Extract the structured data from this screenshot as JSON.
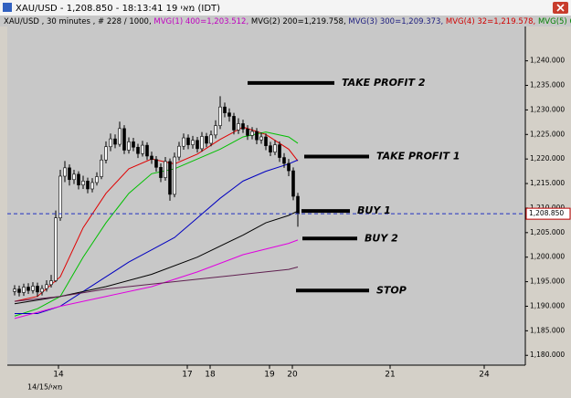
{
  "window_title": "XAU/USD - 1,208.850 - 18:13:41  19 מאי (IDT)",
  "chart_data": {
    "type": "candlestick",
    "header": [
      {
        "text": "XAU/USD , 30 minutes , # 228 / 1000, ",
        "color": "#000000"
      },
      {
        "text": "MVG(1) 400=1,203.512, ",
        "color": "#c000c0"
      },
      {
        "text": "MVG(2) 200=1,219.758, ",
        "color": "#000000"
      },
      {
        "text": "MVG(3) 300=1,209.373, ",
        "color": "#202080"
      },
      {
        "text": "MVG(4) 32=1,219.578, ",
        "color": "#d00000"
      },
      {
        "text": "MVG(5) 64=1,223.16",
        "color": "#008000"
      }
    ],
    "date_note": "14/15/מאי",
    "x": [
      0,
      1,
      2,
      3,
      4,
      5,
      6,
      7,
      8,
      9,
      10,
      11,
      12,
      13,
      14,
      15,
      16,
      17,
      18,
      19,
      20,
      21,
      22,
      23,
      24,
      25,
      26,
      27,
      28,
      29,
      30,
      31,
      32,
      33,
      34,
      35,
      36,
      37,
      38,
      39,
      40,
      41,
      42,
      43,
      44,
      45,
      46,
      47,
      48,
      49,
      50,
      51,
      52,
      53,
      54,
      55,
      56,
      57,
      58,
      59,
      60,
      61,
      62
    ],
    "open": [
      1193.0,
      1193.5,
      1192.8,
      1193.9,
      1193.2,
      1194.1,
      1192.9,
      1193.6,
      1194.4,
      1195.2,
      1208.0,
      1216.5,
      1218.2,
      1215.8,
      1216.9,
      1214.7,
      1215.5,
      1213.9,
      1215.2,
      1216.4,
      1219.8,
      1222.5,
      1224.1,
      1223.0,
      1226.2,
      1221.8,
      1223.5,
      1222.4,
      1221.1,
      1222.8,
      1220.6,
      1219.9,
      1218.3,
      1216.2,
      1219.5,
      1212.8,
      1220.4,
      1222.6,
      1224.3,
      1222.9,
      1223.8,
      1222.1,
      1224.6,
      1223.2,
      1224.9,
      1226.8,
      1230.6,
      1229.4,
      1228.7,
      1225.9,
      1227.2,
      1226.1,
      1224.8,
      1225.6,
      1223.9,
      1224.5,
      1222.7,
      1221.4,
      1222.9,
      1220.3,
      1219.1,
      1217.6,
      1212.4
    ],
    "high": [
      1194.3,
      1194.2,
      1194.6,
      1194.7,
      1194.9,
      1194.8,
      1194.3,
      1195.3,
      1196.4,
      1209.5,
      1217.8,
      1219.6,
      1218.9,
      1217.8,
      1217.5,
      1216.6,
      1216.2,
      1216.1,
      1217.3,
      1220.9,
      1223.6,
      1225.2,
      1225.0,
      1227.6,
      1226.9,
      1224.4,
      1224.3,
      1223.1,
      1223.7,
      1223.4,
      1221.5,
      1220.6,
      1219.1,
      1220.4,
      1220.1,
      1221.3,
      1223.5,
      1225.2,
      1225.0,
      1224.7,
      1224.5,
      1225.5,
      1225.3,
      1225.8,
      1227.9,
      1232.8,
      1231.5,
      1230.3,
      1229.4,
      1228.3,
      1228.0,
      1226.9,
      1226.5,
      1226.3,
      1225.4,
      1225.2,
      1223.5,
      1223.8,
      1223.6,
      1221.2,
      1220.0,
      1218.3,
      1213.1
    ],
    "low": [
      1192.2,
      1192.0,
      1192.1,
      1192.5,
      1192.6,
      1191.9,
      1192.2,
      1193.0,
      1193.8,
      1194.9,
      1207.4,
      1215.3,
      1214.6,
      1214.9,
      1213.8,
      1213.9,
      1213.0,
      1213.2,
      1214.6,
      1215.9,
      1219.1,
      1221.6,
      1222.2,
      1222.5,
      1221.0,
      1221.1,
      1221.6,
      1220.2,
      1220.5,
      1219.8,
      1219.0,
      1217.4,
      1215.3,
      1215.6,
      1211.5,
      1212.2,
      1219.7,
      1221.9,
      1222.0,
      1222.1,
      1221.3,
      1221.5,
      1222.4,
      1222.6,
      1224.2,
      1226.1,
      1228.5,
      1227.6,
      1225.0,
      1225.1,
      1225.3,
      1223.9,
      1224.0,
      1223.0,
      1223.1,
      1221.8,
      1220.6,
      1220.8,
      1219.4,
      1218.2,
      1216.5,
      1211.6,
      1206.2
    ],
    "close": [
      1193.5,
      1192.8,
      1193.9,
      1193.2,
      1194.1,
      1192.9,
      1193.6,
      1194.4,
      1195.2,
      1208.0,
      1216.5,
      1218.2,
      1215.8,
      1216.9,
      1214.7,
      1215.5,
      1213.9,
      1215.2,
      1216.4,
      1219.8,
      1222.5,
      1224.1,
      1223.0,
      1226.2,
      1221.8,
      1223.5,
      1222.4,
      1221.1,
      1222.8,
      1220.6,
      1219.9,
      1218.3,
      1216.2,
      1219.5,
      1212.8,
      1220.4,
      1222.6,
      1224.3,
      1222.9,
      1223.8,
      1222.1,
      1224.6,
      1223.2,
      1224.9,
      1226.8,
      1230.6,
      1229.4,
      1228.7,
      1225.9,
      1227.2,
      1226.1,
      1224.8,
      1225.6,
      1223.9,
      1224.5,
      1222.7,
      1221.4,
      1222.9,
      1220.3,
      1219.1,
      1217.6,
      1212.4,
      1208.85
    ],
    "lines": [
      {
        "color": "#e00000",
        "x": [
          0,
          5,
          10,
          15,
          20,
          25,
          30,
          35,
          40,
          45,
          50,
          55,
          60,
          62
        ],
        "values": [
          1191,
          1192,
          1196,
          1206,
          1213,
          1218,
          1220,
          1219,
          1221,
          1224,
          1226.5,
          1225,
          1222,
          1219.6
        ]
      },
      {
        "color": "#00c000",
        "x": [
          0,
          5,
          10,
          15,
          20,
          25,
          30,
          35,
          40,
          45,
          50,
          55,
          60,
          62
        ],
        "values": [
          1188,
          1189.5,
          1192,
          1200,
          1207,
          1213,
          1217,
          1218,
          1220,
          1222,
          1224.5,
          1225.5,
          1224.5,
          1223.2
        ]
      },
      {
        "color": "#0000c0",
        "x": [
          0,
          5,
          10,
          15,
          20,
          25,
          30,
          35,
          40,
          45,
          50,
          55,
          60,
          62
        ],
        "values": [
          1188.5,
          1188.5,
          1190,
          1193,
          1196,
          1199,
          1201.5,
          1204,
          1208,
          1212,
          1215.5,
          1217.5,
          1219,
          1219.8
        ]
      },
      {
        "color": "#000000",
        "x": [
          0,
          10,
          20,
          30,
          40,
          50,
          55,
          60,
          62
        ],
        "values": [
          1190.5,
          1192,
          1194,
          1196.5,
          1200,
          1204.5,
          1207,
          1208.5,
          1209.4
        ]
      },
      {
        "color": "#e000e0",
        "x": [
          0,
          10,
          20,
          30,
          40,
          50,
          60,
          62
        ],
        "values": [
          1187.5,
          1190,
          1192,
          1194,
          1197,
          1200.5,
          1202.8,
          1203.5
        ]
      },
      {
        "color": "#602050",
        "x": [
          0,
          10,
          20,
          30,
          40,
          50,
          60,
          62
        ],
        "values": [
          1191,
          1192,
          1193.5,
          1194.5,
          1195.5,
          1196.5,
          1197.5,
          1198
        ]
      }
    ],
    "current_price": {
      "value": 1208.85,
      "label": "1,208.850"
    },
    "annotations": [
      {
        "label": "TAKE PROFIT 2",
        "value": 1235.5,
        "x": [
          51,
          70
        ]
      },
      {
        "label": "TAKE PROFIT 1",
        "value": 1220.5,
        "x": [
          63.4,
          77.6
        ]
      },
      {
        "label": "BUY 1",
        "value": 1209.4,
        "x": [
          62.8,
          73.4
        ]
      },
      {
        "label": "BUY 2",
        "value": 1203.8,
        "x": [
          63,
          75
        ]
      },
      {
        "label": "STOP",
        "value": 1193.2,
        "x": [
          61.6,
          77.6
        ]
      }
    ],
    "xlim": [
      -1.6,
      111.8
    ],
    "xticks": [
      {
        "value": 9.6,
        "label": "14"
      },
      {
        "value": 37.8,
        "label": "17"
      },
      {
        "value": 42.8,
        "label": "18"
      },
      {
        "value": 55.8,
        "label": "19"
      },
      {
        "value": 60.8,
        "label": "20"
      },
      {
        "value": 82.2,
        "label": "21"
      },
      {
        "value": 102.8,
        "label": "24"
      }
    ],
    "ylim": [
      1178,
      1247
    ],
    "yticks": [
      {
        "value": 1180,
        "label": "1,180.000"
      },
      {
        "value": 1185,
        "label": "1,185.000"
      },
      {
        "value": 1190,
        "label": "1,190.000"
      },
      {
        "value": 1195,
        "label": "1,195.000"
      },
      {
        "value": 1200,
        "label": "1,200.000"
      },
      {
        "value": 1205,
        "label": "1,205.000"
      },
      {
        "value": 1210,
        "label": "1,210.000"
      },
      {
        "value": 1215,
        "label": "1,215.000"
      },
      {
        "value": 1220,
        "label": "1,220.000"
      },
      {
        "value": 1225,
        "label": "1,225.000"
      },
      {
        "value": 1230,
        "label": "1,230.000"
      },
      {
        "value": 1235,
        "label": "1,235.000"
      },
      {
        "value": 1240,
        "label": "1,240.000"
      }
    ]
  }
}
